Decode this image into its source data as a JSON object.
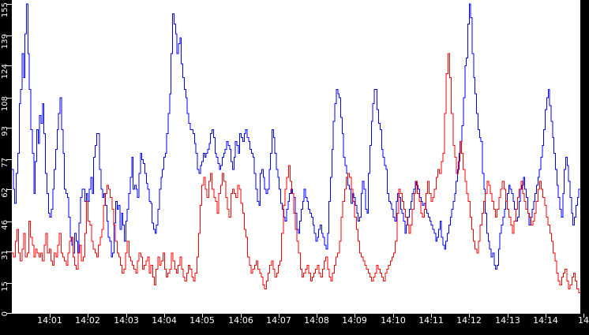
{
  "chart_data": {
    "type": "line",
    "title": "",
    "xlabel": "",
    "ylabel": "",
    "ylim": [
      0,
      155
    ],
    "grid": false,
    "background": "#000000",
    "plot_background": "#ffffff",
    "y_ticks": [
      "0",
      "15",
      "31",
      "46",
      "62",
      "77",
      "93",
      "108",
      "124",
      "139",
      "155"
    ],
    "x_ticks": [
      "14:01",
      "14:02",
      "14:03",
      "14:04",
      "14:05",
      "14:06",
      "14:07",
      "14:08",
      "14:09",
      "14:10",
      "14:11",
      "14:12",
      "14:13",
      "14:14",
      "14"
    ],
    "x_range_minutes": [
      0,
      15
    ],
    "series": [
      {
        "name": "blue",
        "color": "#0000ff",
        "values": [
          72,
          62,
          55,
          70,
          80,
          105,
          112,
          130,
          118,
          140,
          155,
          130,
          112,
          92,
          80,
          60,
          76,
          92,
          85,
          99,
          95,
          105,
          90,
          70,
          60,
          50,
          48,
          52,
          62,
          72,
          82,
          92,
          100,
          108,
          92,
          80,
          62,
          60,
          58,
          48,
          38,
          34,
          30,
          40,
          36,
          30,
          45,
          58,
          62,
          62,
          56,
          60,
          56,
          62,
          68,
          60,
          78,
          84,
          90,
          90,
          72,
          62,
          58,
          60,
          54,
          46,
          38,
          36,
          28,
          30,
          45,
          56,
          52,
          54,
          42,
          50,
          44,
          36,
          46,
          52,
          60,
          68,
          78,
          62,
          64,
          62,
          58,
          70,
          80,
          77,
          75,
          70,
          65,
          62,
          56,
          55,
          45,
          42,
          40,
          44,
          52,
          62,
          68,
          72,
          78,
          80,
          90,
          100,
          110,
          130,
          150,
          145,
          140,
          130,
          135,
          138,
          125,
          118,
          112,
          108,
          100,
          95,
          92,
          92,
          90,
          85,
          80,
          72,
          70,
          74,
          76,
          80,
          78,
          80,
          82,
          85,
          90,
          92,
          88,
          80,
          78,
          75,
          72,
          74,
          78,
          80,
          82,
          86,
          84,
          82,
          76,
          72,
          78,
          86,
          84,
          80,
          90,
          88,
          86,
          90,
          92,
          88,
          86,
          82,
          80,
          78,
          70,
          62,
          56,
          54,
          70,
          72,
          68,
          62,
          60,
          62,
          72,
          80,
          92,
          88,
          80,
          72,
          68,
          62,
          55,
          52,
          48,
          46,
          52,
          56,
          60,
          62,
          60,
          58,
          50,
          42,
          40,
          46,
          52,
          56,
          62,
          58,
          56,
          52,
          50,
          48,
          44,
          40,
          36,
          38,
          42,
          44,
          40,
          38,
          34,
          32,
          40,
          56,
          68,
          82,
          96,
          105,
          112,
          110,
          108,
          98,
          90,
          78,
          74,
          70,
          64,
          62,
          55,
          60,
          58,
          54,
          50,
          46,
          48,
          60,
          66,
          62,
          52,
          50,
          70,
          84,
          96,
          105,
          112,
          112,
          102,
          95,
          92,
          82,
          78,
          74,
          72,
          60,
          56,
          55,
          52,
          48,
          46,
          56,
          60,
          58,
          52,
          50,
          46,
          40,
          44,
          48,
          52,
          56,
          60,
          62,
          66,
          64,
          62,
          58,
          56,
          54,
          55,
          52,
          50,
          48,
          46,
          44,
          42,
          40,
          36,
          38,
          42,
          46,
          38,
          34,
          32,
          36,
          40,
          44,
          48,
          52,
          56,
          60,
          66,
          72,
          80,
          86,
          94,
          108,
          124,
          128,
          145,
          155,
          148,
          130,
          118,
          110,
          100,
          92,
          88,
          86,
          70,
          62,
          50,
          40,
          36,
          32,
          28,
          30,
          24,
          22,
          24,
          32,
          40,
          44,
          48,
          52,
          56,
          60,
          64,
          62,
          60,
          56,
          52,
          46,
          48,
          56,
          62,
          64,
          68,
          62,
          58,
          50,
          44,
          48,
          52,
          56,
          60,
          64,
          68,
          72,
          78,
          84,
          92,
          102,
          108,
          112,
          104,
          96,
          88,
          80,
          72,
          64,
          58,
          52,
          48,
          60,
          72,
          78,
          74,
          66,
          58,
          50,
          44,
          48,
          54,
          58,
          62
        ],
        "peak": 155
      },
      {
        "name": "red",
        "color": "#ff0000",
        "values": [
          30,
          28,
          36,
          42,
          30,
          26,
          32,
          40,
          28,
          30,
          46,
          38,
          34,
          28,
          32,
          30,
          28,
          30,
          26,
          34,
          40,
          30,
          32,
          26,
          24,
          30,
          28,
          34,
          40,
          30,
          28,
          26,
          24,
          30,
          36,
          38,
          28,
          24,
          22,
          30,
          34,
          26,
          28,
          40,
          56,
          46,
          44,
          36,
          32,
          30,
          28,
          34,
          38,
          42,
          54,
          60,
          64,
          62,
          58,
          52,
          44,
          36,
          30,
          28,
          24,
          20,
          22,
          30,
          36,
          28,
          26,
          24,
          22,
          20,
          26,
          30,
          28,
          22,
          24,
          26,
          28,
          20,
          24,
          18,
          14,
          22,
          28,
          24,
          26,
          30,
          22,
          18,
          20,
          22,
          30,
          26,
          22,
          20,
          24,
          28,
          22,
          18,
          16,
          20,
          24,
          22,
          18,
          16,
          20,
          28,
          40,
          54,
          64,
          68,
          62,
          58,
          66,
          70,
          62,
          58,
          56,
          50,
          60,
          64,
          70,
          66,
          58,
          52,
          48,
          60,
          62,
          60,
          58,
          64,
          62,
          55,
          50,
          42,
          38,
          28,
          24,
          20,
          22,
          24,
          26,
          22,
          20,
          18,
          14,
          12,
          16,
          20,
          24,
          26,
          22,
          18,
          20,
          24,
          26,
          40,
          54,
          62,
          68,
          74,
          66,
          60,
          50,
          42,
          36,
          30,
          22,
          18,
          20,
          22,
          24,
          20,
          16,
          18,
          20,
          22,
          24,
          20,
          18,
          22,
          26,
          28,
          22,
          18,
          16,
          20,
          24,
          28,
          30,
          36,
          48,
          56,
          62,
          68,
          70,
          68,
          62,
          56,
          48,
          42,
          36,
          30,
          28,
          26,
          24,
          22,
          20,
          18,
          16,
          18,
          20,
          24,
          22,
          20,
          18,
          16,
          20,
          22,
          24,
          26,
          28,
          30,
          36,
          50,
          62,
          60,
          56,
          52,
          48,
          44,
          40,
          44,
          52,
          60,
          66,
          60,
          56,
          50,
          48,
          52,
          60,
          66,
          60,
          56,
          58,
          62,
          68,
          72,
          70,
          76,
          80,
          100,
          120,
          130,
          118,
          100,
          84,
          78,
          70,
          76,
          86,
          80,
          72,
          66,
          60,
          56,
          48,
          42,
          36,
          32,
          30,
          36,
          44,
          50,
          56,
          60,
          66,
          64,
          60,
          56,
          52,
          48,
          52,
          58,
          62,
          66,
          62,
          56,
          52,
          48,
          44,
          40,
          46,
          52,
          58,
          62,
          66,
          60,
          56,
          52,
          50,
          48,
          44,
          46,
          50,
          56,
          62,
          66,
          62,
          58,
          54,
          48,
          44,
          40,
          36,
          30,
          26,
          20,
          16,
          14,
          18,
          20,
          22,
          16,
          12,
          14,
          18,
          20,
          16,
          12,
          10
        ]
      }
    ]
  }
}
